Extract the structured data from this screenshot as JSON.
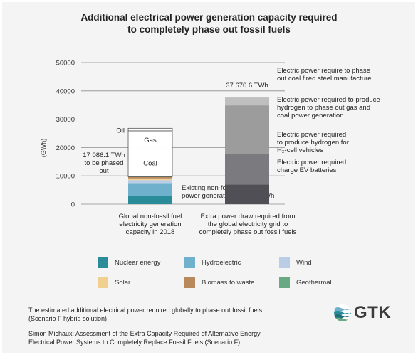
{
  "title_lines": [
    "Additional electrical power generation capacity required",
    "to completely phase out fossil fuels"
  ],
  "chart_data": {
    "type": "bar",
    "stacked": true,
    "ylabel": "(GWh)",
    "ylim": [
      0,
      50000
    ],
    "yticks": [
      "50000",
      "40000",
      "30000",
      "20000",
      "10000",
      "0"
    ],
    "ytick_values": [
      50000,
      40000,
      30000,
      20000,
      10000,
      0
    ],
    "categories": [
      [
        "Global non-fossil fuel",
        "electricity generation",
        "capacity in 2018"
      ],
      [
        "Extra power draw required from",
        "the global electricity grid to",
        "completely phase out fossil fuels"
      ]
    ],
    "bar1_segments": [
      {
        "key": "nuclear",
        "value": 3000,
        "color": "#2b8c99"
      },
      {
        "key": "hydro",
        "value": 4200,
        "color": "#6fb1cc"
      },
      {
        "key": "wind",
        "value": 1300,
        "color": "#b9cde6"
      },
      {
        "key": "solar",
        "value": 600,
        "color": "#f0d08e"
      },
      {
        "key": "biomass",
        "value": 500,
        "color": "#b8895d"
      },
      {
        "key": "geothermal",
        "value": 100,
        "color": "#6aa883"
      },
      {
        "key": "coal",
        "value": 9800,
        "color": "#ffffff",
        "label": "Coal"
      },
      {
        "key": "gas",
        "value": 6400,
        "color": "#ffffff",
        "label": "Gas"
      },
      {
        "key": "oil",
        "value": 900,
        "color": "#ffffff"
      }
    ],
    "bar1_oil_label": "Oil",
    "bar1_phase_label": [
      "17 086.1 TWh",
      "to be phased",
      "out"
    ],
    "bar1_existing_label": [
      "Existing non-fossil fuel",
      "power generation 9 528.7 TWh"
    ],
    "bar2_total_label": "37 670.6 TWh",
    "bar2_segments": [
      {
        "key": "ev",
        "value": 6900,
        "color": "#4f4f55"
      },
      {
        "key": "h2_vehicles",
        "value": 10900,
        "color": "#7b7b7f",
        "label": [
          "Electric power required",
          "to produce hydrogen for",
          "H₂-cell vehicles"
        ]
      },
      {
        "key": "h2_gas_coal",
        "value": 17100,
        "color": "#9c9c9c",
        "label": [
          "Electric power required to produce",
          "hydrogen to phase out gas and",
          "coal power generation"
        ]
      },
      {
        "key": "steel",
        "value": 2770,
        "color": "#bfbfbf",
        "label": [
          "Electric power require to phase",
          "out coal fired steel manufacture"
        ]
      }
    ],
    "bar2_ev_label": [
      "Electric power required",
      "charge EV batteries"
    ]
  },
  "legend": [
    {
      "label": "Nuclear energy",
      "color": "#2b8c99"
    },
    {
      "label": "Hydroelectric",
      "color": "#6fb1cc"
    },
    {
      "label": "Wind",
      "color": "#b9cde6"
    },
    {
      "label": "Solar",
      "color": "#f0d08e"
    },
    {
      "label": "Biomass to waste",
      "color": "#b8895d"
    },
    {
      "label": "Geothermal",
      "color": "#6aa883"
    }
  ],
  "footnote1": [
    "The estimated additional electrical power required globally to phase out fossil fuels",
    "(Scenario F hybrid solution)"
  ],
  "footnote2": [
    "Simon Michaux: Assessment of the Extra Capacity Required of Alternative Energy",
    "Electrical Power Systems to Completely Replace Fossil Fuels (Scenario F)"
  ],
  "logo": {
    "text": "GTK",
    "icon": "gtk-waves-logo-icon"
  }
}
